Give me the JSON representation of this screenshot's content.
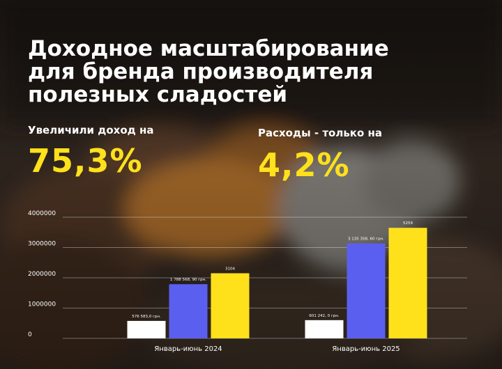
{
  "title_lines": [
    "Доходное масштабирование",
    "для бренда производителя",
    "полезных сладостей"
  ],
  "stats": [
    {
      "label": "Увеличили доход на",
      "value": "75,3%"
    },
    {
      "label": "Расходы - только на",
      "value": "4,2%"
    }
  ],
  "colors": {
    "accent": "#ffe11b",
    "blue": "#5b5ff0",
    "white": "#ffffff"
  },
  "chart_data": {
    "type": "bar",
    "categories": [
      "Январь-июнь 2024",
      "Январь-июнь 2025"
    ],
    "series": [
      {
        "color": "#ffffff",
        "values": [
          576583,
          601242
        ],
        "labels": [
          "576 583,0 грн.",
          "601 242, 0 грн."
        ]
      },
      {
        "color": "#5b5ff0",
        "values": [
          1788568.9,
          3135358.6
        ],
        "labels": [
          "1 788 568, 90 грн.",
          "3 135 358, 60 грн."
        ]
      },
      {
        "color": "#ffe11b",
        "values": [
          2150000,
          3650000
        ],
        "labels": [
          "3104",
          "5259"
        ]
      }
    ],
    "yticks": [
      "0",
      "1000000",
      "2000000",
      "3000000",
      "4000000"
    ],
    "ylim": [
      0,
      4000000
    ],
    "grid": true
  }
}
